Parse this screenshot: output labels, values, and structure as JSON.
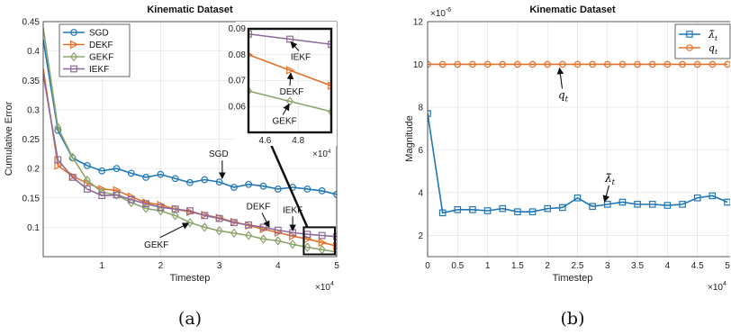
{
  "captions": [
    "(a)",
    "(b)"
  ],
  "colors": {
    "blue": "#1f77b4",
    "orange": "#e2712b",
    "green": "#8ea56e",
    "purple": "#8c6a98"
  },
  "chart_data": [
    {
      "type": "line",
      "title": "Kinematic Dataset",
      "xlabel": "Timestep",
      "ylabel": "Cumulative Error",
      "x_exponent": "×10",
      "x_exponent_power": "4",
      "xlim": [
        0,
        5
      ],
      "ylim": [
        0.05,
        0.45
      ],
      "xticks": [
        1,
        2,
        3,
        4,
        5
      ],
      "xtick_labels": [
        "1",
        "2",
        "3",
        "4",
        "5"
      ],
      "yticks": [
        0.1,
        0.15,
        0.2,
        0.25,
        0.3,
        0.35,
        0.4,
        0.45
      ],
      "ytick_labels": [
        "0.1",
        "0.15",
        "0.2",
        "0.25",
        "0.3",
        "0.35",
        "0.4",
        "0.45"
      ],
      "grid": true,
      "legend_position": "top-left",
      "marker_x": [
        0.25,
        0.5,
        0.75,
        1.0,
        1.25,
        1.5,
        1.75,
        2.0,
        2.25,
        2.5,
        2.75,
        3.0,
        3.25,
        3.5,
        3.75,
        4.0,
        4.25,
        4.5,
        4.75,
        5.0
      ],
      "series": [
        {
          "name": "SGD",
          "marker": "circle",
          "color": "#1f77b4",
          "start": 0.42,
          "values": [
            0.265,
            0.218,
            0.205,
            0.196,
            0.2,
            0.192,
            0.185,
            0.19,
            0.183,
            0.176,
            0.181,
            0.177,
            0.168,
            0.173,
            0.17,
            0.165,
            0.168,
            0.165,
            0.162,
            0.156
          ]
        },
        {
          "name": "DEKF",
          "marker": "triangle-right",
          "color": "#e2712b",
          "start": 0.37,
          "values": [
            0.205,
            0.187,
            0.175,
            0.165,
            0.163,
            0.152,
            0.142,
            0.138,
            0.131,
            0.126,
            0.121,
            0.116,
            0.109,
            0.103,
            0.097,
            0.091,
            0.085,
            0.08,
            0.074,
            0.068
          ]
        },
        {
          "name": "GEKF",
          "marker": "diamond",
          "color": "#8ea56e",
          "start": 0.44,
          "values": [
            0.27,
            0.219,
            0.18,
            0.16,
            0.155,
            0.142,
            0.132,
            0.128,
            0.12,
            0.108,
            0.1,
            0.094,
            0.09,
            0.086,
            0.08,
            0.077,
            0.071,
            0.066,
            0.062,
            0.058
          ]
        },
        {
          "name": "IEKF",
          "marker": "square",
          "color": "#8c6a98",
          "start": 0.36,
          "values": [
            0.215,
            0.185,
            0.165,
            0.154,
            0.155,
            0.147,
            0.14,
            0.134,
            0.131,
            0.128,
            0.12,
            0.115,
            0.108,
            0.104,
            0.1,
            0.095,
            0.091,
            0.088,
            0.086,
            0.084
          ]
        }
      ],
      "annotations": [
        {
          "text": "SGD",
          "target": [
            3.05,
            0.183
          ]
        },
        {
          "text": "DEKF",
          "target": [
            3.85,
            0.1
          ]
        },
        {
          "text": "IEKF",
          "target": [
            4.25,
            0.094
          ]
        },
        {
          "text": "GEKF",
          "target": [
            2.48,
            0.107
          ]
        }
      ],
      "inset": {
        "xlim": [
          4.5,
          5.0
        ],
        "ylim": [
          0.05,
          0.09
        ],
        "xticks": [
          4.6,
          4.8
        ],
        "xtick_labels": [
          "4.6",
          "4.8"
        ],
        "yticks": [
          0.06,
          0.07,
          0.08,
          0.09
        ],
        "ytick_labels": [
          "0.06",
          "0.07",
          "0.08",
          "0.09"
        ],
        "x_exponent": "×10",
        "x_exponent_power": "4",
        "zoom_xlim": [
          4.5,
          5.0
        ],
        "zoom_ylim": [
          0.06,
          0.1
        ],
        "annotations": [
          {
            "text": "IEKF",
            "target": [
              4.75,
              0.086
            ]
          },
          {
            "text": "DEKF",
            "target": [
              4.75,
              0.074
            ]
          },
          {
            "text": "GEKF",
            "target": [
              4.74,
              0.062
            ]
          }
        ]
      }
    },
    {
      "type": "line",
      "title": "Kinematic Dataset",
      "xlabel": "Timestep",
      "ylabel": "Magnitude",
      "y_exponent": "×10",
      "y_exponent_power": "-6",
      "x_exponent": "×10",
      "x_exponent_power": "4",
      "xlim": [
        0,
        5
      ],
      "ylim": [
        1,
        12
      ],
      "xticks": [
        0,
        0.5,
        1,
        1.5,
        2,
        2.5,
        3,
        3.5,
        4,
        4.5,
        5
      ],
      "xtick_labels": [
        "0",
        "0.5",
        "1",
        "1.5",
        "2",
        "2.5",
        "3",
        "3.5",
        "4",
        "4.5",
        "5"
      ],
      "yticks": [
        2,
        4,
        6,
        8,
        10,
        12
      ],
      "ytick_labels": [
        "2",
        "4",
        "6",
        "8",
        "10",
        "12"
      ],
      "grid": true,
      "legend_position": "top-right",
      "series": [
        {
          "name": "λ̃_t",
          "marker": "square",
          "color": "#1f77b4",
          "x": [
            0,
            0.25,
            0.5,
            0.75,
            1.0,
            1.25,
            1.5,
            1.75,
            2.0,
            2.25,
            2.5,
            2.75,
            3.0,
            3.25,
            3.5,
            3.75,
            4.0,
            4.25,
            4.5,
            4.75,
            5.0
          ],
          "values": [
            7.7,
            3.05,
            3.2,
            3.2,
            3.15,
            3.25,
            3.1,
            3.1,
            3.25,
            3.3,
            3.75,
            3.35,
            3.45,
            3.55,
            3.45,
            3.45,
            3.4,
            3.45,
            3.75,
            3.85,
            3.55
          ]
        },
        {
          "name": "q_t",
          "marker": "circle",
          "color": "#e2712b",
          "x": [
            0,
            0.25,
            0.5,
            0.75,
            1.0,
            1.25,
            1.5,
            1.75,
            2.0,
            2.25,
            2.5,
            2.75,
            3.0,
            3.25,
            3.5,
            3.75,
            4.0,
            4.25,
            4.5,
            4.75,
            5.0
          ],
          "values": [
            10,
            10,
            10,
            10,
            10,
            10,
            10,
            10,
            10,
            10,
            10,
            10,
            10,
            10,
            10,
            10,
            10,
            10,
            10,
            10,
            10
          ]
        }
      ],
      "annotations": [
        {
          "text": "q_t",
          "target": [
            2.2,
            10
          ]
        },
        {
          "text": "λ̃_t",
          "target": [
            2.95,
            3.4
          ]
        }
      ]
    }
  ]
}
